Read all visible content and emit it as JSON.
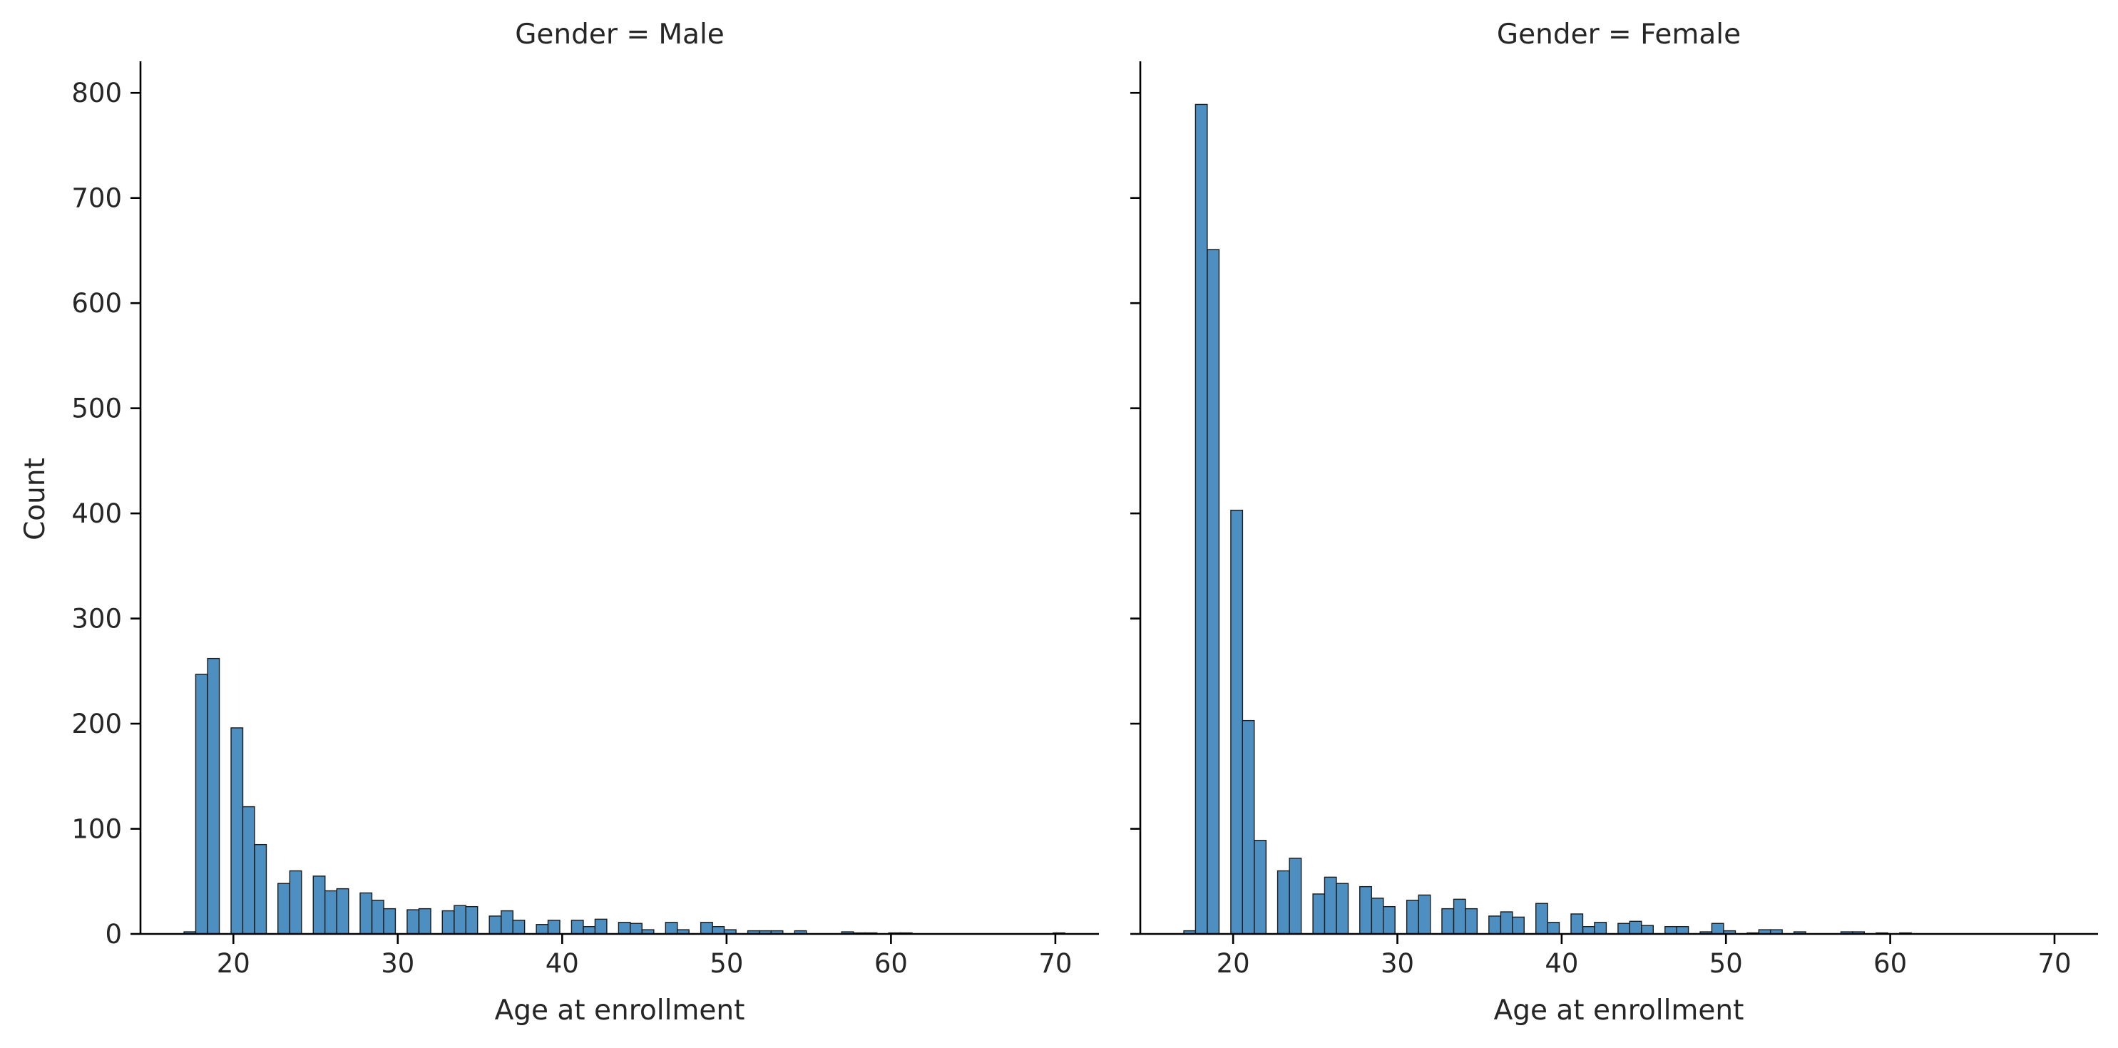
{
  "chart_data": [
    {
      "type": "bar",
      "title": "Gender = Male",
      "xlabel": "Age at enrollment",
      "ylabel": "Count",
      "xlim": [
        14.35,
        72.65
      ],
      "ylim": [
        0,
        830
      ],
      "xticks": [
        20,
        30,
        40,
        50,
        60,
        70
      ],
      "yticks": [
        0,
        100,
        200,
        300,
        400,
        500,
        600,
        700,
        800
      ],
      "bar_color": "#4c8fc0",
      "bin_width": 0.715,
      "x": [
        17,
        17.71,
        18.43,
        19.14,
        19.86,
        20.57,
        21.29,
        22,
        22.71,
        23.43,
        24.14,
        24.86,
        25.57,
        26.29,
        27,
        27.71,
        28.43,
        29.14,
        29.86,
        30.57,
        31.29,
        32,
        32.71,
        33.43,
        34.14,
        34.86,
        35.57,
        36.29,
        37,
        37.71,
        38.43,
        39.14,
        39.86,
        40.57,
        41.29,
        42,
        42.71,
        43.43,
        44.14,
        44.86,
        45.57,
        46.29,
        47,
        47.71,
        48.43,
        49.14,
        49.86,
        50.57,
        51.29,
        52,
        52.71,
        53.43,
        54.14,
        54.86,
        55.57,
        56.29,
        57,
        57.71,
        58.43,
        59.14,
        59.86,
        60.57,
        61.29,
        62,
        62.71,
        63.43,
        64.14,
        64.86,
        65.57,
        66.29,
        67,
        67.71,
        68.43,
        69.14,
        69.86
      ],
      "values": [
        2,
        247,
        262,
        0,
        196,
        121,
        85,
        0,
        48,
        60,
        0,
        55,
        41,
        43,
        0,
        39,
        32,
        24,
        0,
        23,
        24,
        0,
        22,
        27,
        26,
        0,
        17,
        22,
        13,
        0,
        9,
        13,
        0,
        13,
        7,
        14,
        0,
        11,
        10,
        4,
        0,
        11,
        4,
        0,
        11,
        7,
        4,
        0,
        3,
        3,
        3,
        0,
        3,
        0,
        0,
        0,
        2,
        1,
        1,
        0,
        1,
        1,
        0,
        0,
        0,
        0,
        0,
        0,
        0,
        0,
        0,
        0,
        0,
        0,
        1
      ]
    },
    {
      "type": "bar",
      "title": "Gender = Female",
      "xlabel": "Age at enrollment",
      "ylabel": "",
      "xlim": [
        14.35,
        72.65
      ],
      "ylim": [
        0,
        830
      ],
      "xticks": [
        20,
        30,
        40,
        50,
        60,
        70
      ],
      "yticks": [
        0,
        100,
        200,
        300,
        400,
        500,
        600,
        700,
        800
      ],
      "bar_color": "#4c8fc0",
      "bin_width": 0.715,
      "x": [
        17,
        17.71,
        18.43,
        19.14,
        19.86,
        20.57,
        21.29,
        22,
        22.71,
        23.43,
        24.14,
        24.86,
        25.57,
        26.29,
        27,
        27.71,
        28.43,
        29.14,
        29.86,
        30.57,
        31.29,
        32,
        32.71,
        33.43,
        34.14,
        34.86,
        35.57,
        36.29,
        37,
        37.71,
        38.43,
        39.14,
        39.86,
        40.57,
        41.29,
        42,
        42.71,
        43.43,
        44.14,
        44.86,
        45.57,
        46.29,
        47,
        47.71,
        48.43,
        49.14,
        49.86,
        50.57,
        51.29,
        52,
        52.71,
        53.43,
        54.14,
        54.86,
        55.57,
        56.29,
        57,
        57.71,
        58.43,
        59.14,
        59.86,
        60.57,
        61.29,
        62,
        62.71,
        63.43,
        64.14,
        64.86,
        65.57,
        66.29,
        67,
        67.71,
        68.43,
        69.14,
        69.86
      ],
      "values": [
        3,
        789,
        651,
        0,
        403,
        203,
        89,
        0,
        60,
        72,
        0,
        38,
        54,
        48,
        0,
        45,
        34,
        26,
        0,
        32,
        37,
        0,
        24,
        33,
        24,
        0,
        17,
        21,
        16,
        0,
        29,
        11,
        0,
        19,
        7,
        11,
        0,
        10,
        12,
        8,
        0,
        7,
        7,
        0,
        2,
        10,
        3,
        0,
        1,
        4,
        4,
        0,
        2,
        0,
        0,
        0,
        2,
        2,
        0,
        1,
        0,
        1,
        0,
        0,
        0,
        0,
        0,
        0,
        0,
        0,
        0,
        0,
        0,
        0,
        0
      ]
    }
  ]
}
